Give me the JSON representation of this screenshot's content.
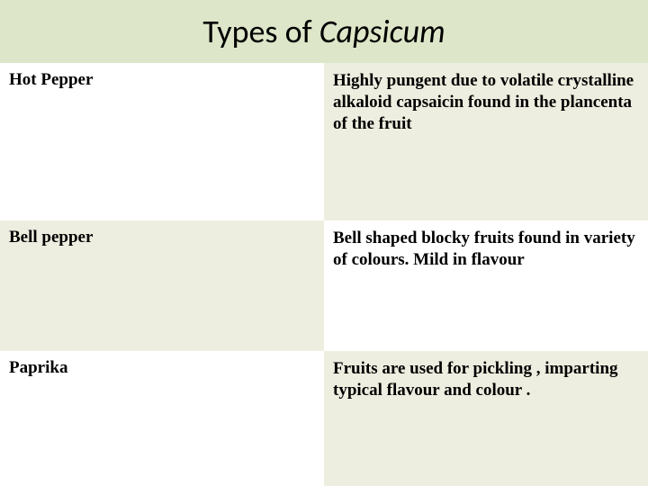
{
  "title_plain": "Types of ",
  "title_italic": "Capsicum",
  "rows": [
    {
      "name": "Hot Pepper",
      "desc": "Highly pungent due to volatile crystalline alkaloid capsaicin found in the plancenta of the fruit"
    },
    {
      "name": "Bell pepper",
      "desc": "Bell shaped blocky fruits found in variety of colours. Mild in flavour"
    },
    {
      "name": "Paprika",
      "desc": "Fruits are used for pickling , imparting typical flavour and colour ."
    }
  ],
  "colors": {
    "title_bg": "#dde6c8",
    "cream": "#eeeee0",
    "white": "#ffffff"
  }
}
